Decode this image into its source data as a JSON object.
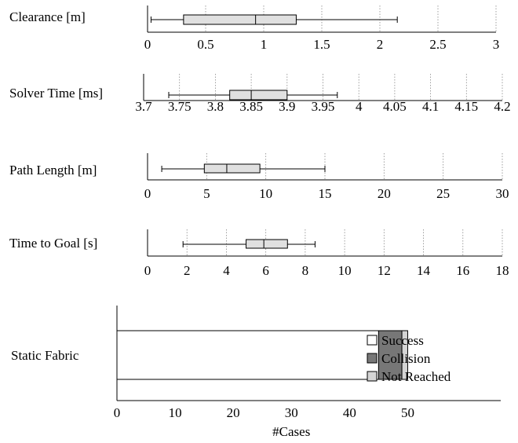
{
  "chart_data": [
    {
      "type": "box",
      "ylabel": "Clearance [m]",
      "xlim": [
        0,
        3
      ],
      "ticks": [
        "0",
        "0.5",
        "1",
        "1.5",
        "2",
        "2.5",
        "3"
      ],
      "tick_values": [
        0,
        0.5,
        1,
        1.5,
        2,
        2.5,
        3
      ],
      "box": {
        "min": 0.03,
        "q1": 0.31,
        "median": 0.93,
        "q3": 1.28,
        "max": 2.15
      },
      "grid": true
    },
    {
      "type": "box",
      "ylabel": "Solver Time [ms]",
      "xlim": [
        3.7,
        4.2
      ],
      "ticks": [
        "3.7",
        "3.75",
        "3.8",
        "3.85",
        "3.9",
        "3.95",
        "4",
        "4.05",
        "4.1",
        "4.15",
        "4.2"
      ],
      "tick_values": [
        3.7,
        3.75,
        3.8,
        3.85,
        3.9,
        3.95,
        4.0,
        4.05,
        4.1,
        4.15,
        4.2
      ],
      "box": {
        "min": 3.735,
        "q1": 3.82,
        "median": 3.85,
        "q3": 3.9,
        "max": 3.97
      },
      "grid": true
    },
    {
      "type": "box",
      "ylabel": "Path Length [m]",
      "xlim": [
        0,
        30
      ],
      "ticks": [
        "0",
        "5",
        "10",
        "15",
        "20",
        "25",
        "30"
      ],
      "tick_values": [
        0,
        5,
        10,
        15,
        20,
        25,
        30
      ],
      "box": {
        "min": 1.2,
        "q1": 4.8,
        "median": 6.7,
        "q3": 9.5,
        "max": 15.0
      },
      "grid": true
    },
    {
      "type": "box",
      "ylabel": "Time to Goal [s]",
      "xlim": [
        0,
        18
      ],
      "ticks": [
        "0",
        "2",
        "4",
        "6",
        "8",
        "10",
        "12",
        "14",
        "16",
        "18"
      ],
      "tick_values": [
        0,
        2,
        4,
        6,
        8,
        10,
        12,
        14,
        16,
        18
      ],
      "box": {
        "min": 1.8,
        "q1": 5.0,
        "median": 5.9,
        "q3": 7.1,
        "max": 8.5
      },
      "grid": true
    },
    {
      "type": "bar",
      "orientation": "horizontal",
      "stacked": true,
      "categories": [
        "Static Fabric"
      ],
      "series": [
        {
          "name": "Success",
          "values": [
            45
          ],
          "color": "#ffffff"
        },
        {
          "name": "Collision",
          "values": [
            4
          ],
          "color": "#777777"
        },
        {
          "name": "Not Reached",
          "values": [
            1
          ],
          "color": "#d4d4d4"
        }
      ],
      "xlabel": "#Cases",
      "ticks": [
        "0",
        "10",
        "20",
        "30",
        "40",
        "50"
      ],
      "tick_values": [
        0,
        10,
        20,
        30,
        40,
        50
      ],
      "xlim": [
        0,
        66
      ],
      "legend": "right"
    }
  ]
}
